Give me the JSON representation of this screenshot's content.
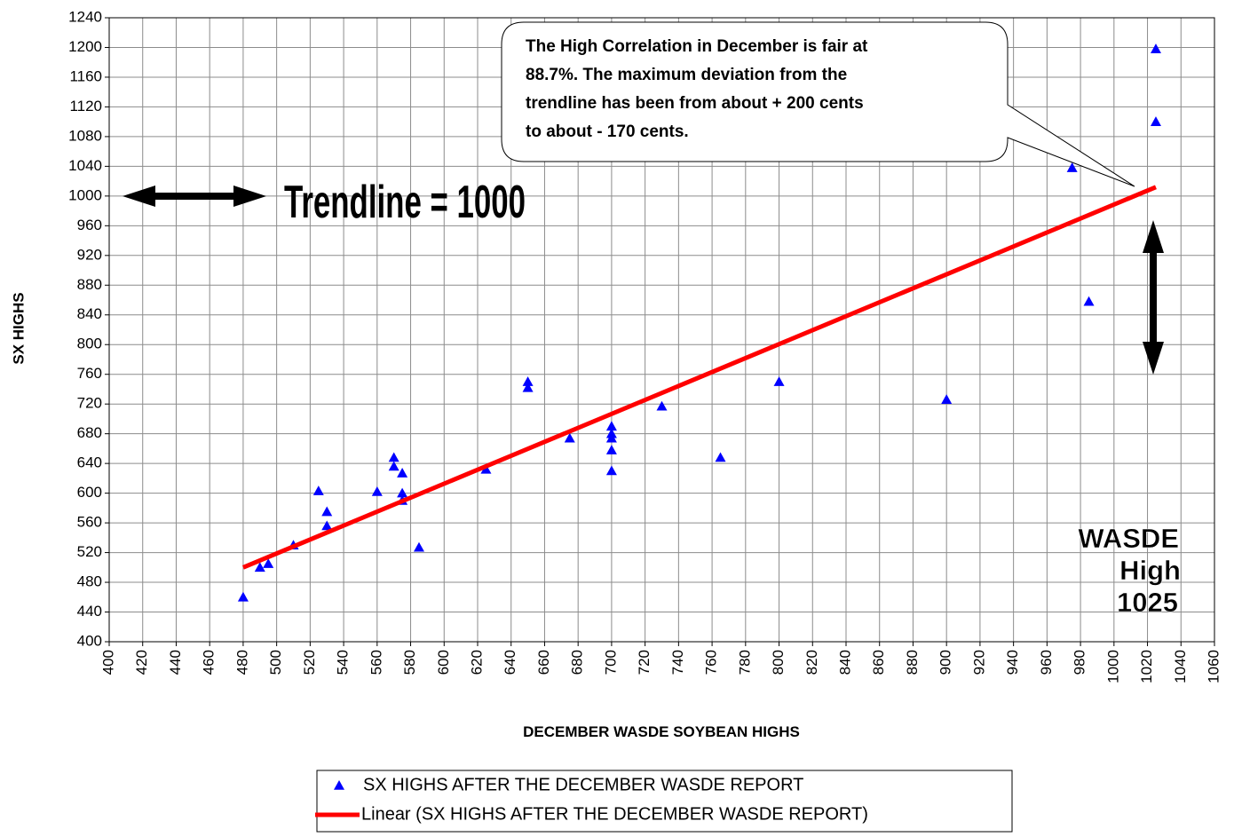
{
  "chart_data": {
    "type": "scatter",
    "x_label": "DECEMBER WASDE SOYBEAN HIGHS",
    "y_label": "SX HIGHS",
    "series": [
      {
        "name": "SX HIGHS AFTER THE DECEMBER WASDE REPORT",
        "color": "#0000ff",
        "marker": "triangle",
        "x": [
          480,
          490,
          495,
          510,
          525,
          530,
          530,
          560,
          570,
          570,
          575,
          575,
          575,
          585,
          625,
          650,
          650,
          675,
          700,
          700,
          700,
          700,
          700,
          730,
          765,
          800,
          900,
          975,
          985,
          1025,
          1025
        ],
        "values": [
          460,
          500,
          505,
          530,
          603,
          575,
          556,
          602,
          648,
          636,
          627,
          600,
          590,
          527,
          632,
          750,
          742,
          674,
          690,
          680,
          674,
          658,
          630,
          717,
          648,
          750,
          726,
          1038,
          858,
          1198,
          1100
        ]
      },
      {
        "name": "Linear (SX HIGHS AFTER THE DECEMBER WASDE REPORT)",
        "color": "#ff0000",
        "marker": "line",
        "x": [
          480,
          1025
        ],
        "values": [
          500,
          1012
        ]
      }
    ],
    "xlim": [
      400,
      1060
    ],
    "ylim": [
      400,
      1240
    ],
    "xticks": [
      400,
      420,
      440,
      460,
      480,
      500,
      520,
      540,
      560,
      580,
      600,
      620,
      640,
      660,
      680,
      700,
      720,
      740,
      760,
      780,
      800,
      820,
      840,
      860,
      880,
      900,
      920,
      940,
      960,
      980,
      1000,
      1020,
      1040,
      1060
    ],
    "yticks": [
      400,
      440,
      480,
      520,
      560,
      600,
      640,
      680,
      720,
      760,
      800,
      840,
      880,
      920,
      960,
      1000,
      1040,
      1080,
      1120,
      1160,
      1200,
      1240
    ],
    "grid": true,
    "legend": "bottom",
    "annotations": {
      "callout": [
        "The High Correlation in December is fair at",
        "88.7%. The maximum deviation from the",
        "trendline has been from about + 200 cents",
        "to about - 170 cents."
      ],
      "trendline": "Trendline = 1000",
      "wasde": [
        "WASDE",
        "High",
        "1025"
      ]
    }
  }
}
